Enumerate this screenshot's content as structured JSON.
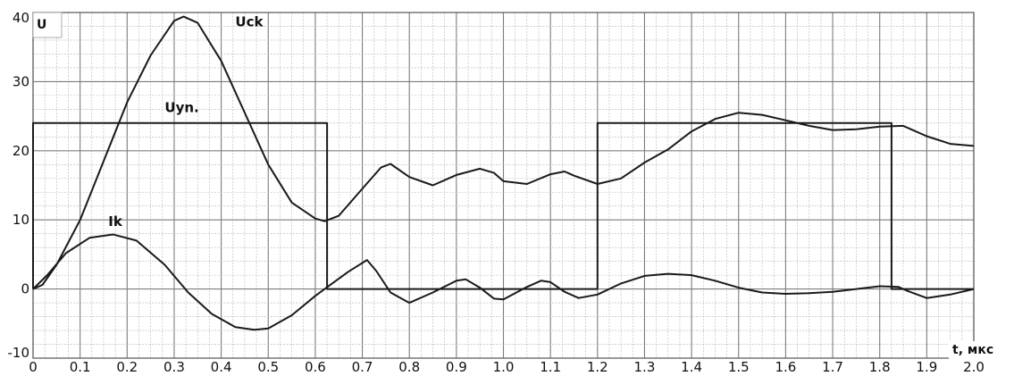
{
  "chart_data": {
    "type": "line",
    "title": "",
    "xlabel": "t, мкс",
    "ylabel": "U",
    "xlim": [
      0,
      2.0
    ],
    "ylim": [
      -10,
      40
    ],
    "grid": true,
    "x_ticks": [
      "0",
      "0.1",
      "0.2",
      "0.3",
      "0.4",
      "0.5",
      "0.6",
      "0.7",
      "0.8",
      "0.9",
      "1.0",
      "1.1",
      "1.2",
      "1.3",
      "1.4",
      "1.5",
      "1.6",
      "1.7",
      "1.8",
      "1.9",
      "2.0"
    ],
    "y_ticks": [
      "-10",
      "0",
      "10",
      "20",
      "30",
      "40"
    ],
    "series": [
      {
        "name": "Uck",
        "label_at": [
          0.43,
          38.0
        ],
        "points": [
          [
            0,
            0
          ],
          [
            0.02,
            0.6
          ],
          [
            0.05,
            3.5
          ],
          [
            0.1,
            10
          ],
          [
            0.15,
            18.5
          ],
          [
            0.2,
            27
          ],
          [
            0.25,
            33.8
          ],
          [
            0.3,
            38.8
          ],
          [
            0.32,
            39.4
          ],
          [
            0.35,
            38.5
          ],
          [
            0.4,
            33
          ],
          [
            0.45,
            25.5
          ],
          [
            0.5,
            18
          ],
          [
            0.55,
            12.5
          ],
          [
            0.6,
            10.2
          ],
          [
            0.62,
            9.8
          ],
          [
            0.65,
            10.6
          ],
          [
            0.7,
            14.5
          ],
          [
            0.74,
            17.6
          ],
          [
            0.76,
            18.1
          ],
          [
            0.8,
            16.2
          ],
          [
            0.85,
            15
          ],
          [
            0.9,
            16.5
          ],
          [
            0.95,
            17.4
          ],
          [
            0.98,
            16.8
          ],
          [
            1.0,
            15.6
          ],
          [
            1.05,
            15.2
          ],
          [
            1.1,
            16.6
          ],
          [
            1.13,
            17
          ],
          [
            1.15,
            16.4
          ],
          [
            1.2,
            15.2
          ],
          [
            1.25,
            16
          ],
          [
            1.3,
            18.3
          ],
          [
            1.35,
            20.2
          ],
          [
            1.4,
            22.8
          ],
          [
            1.45,
            24.6
          ],
          [
            1.5,
            25.5
          ],
          [
            1.55,
            25.2
          ],
          [
            1.6,
            24.4
          ],
          [
            1.65,
            23.6
          ],
          [
            1.7,
            23
          ],
          [
            1.75,
            23.1
          ],
          [
            1.8,
            23.5
          ],
          [
            1.85,
            23.6
          ],
          [
            1.9,
            22.1
          ],
          [
            1.95,
            21
          ],
          [
            2.0,
            20.7
          ]
        ]
      },
      {
        "name": "Uyn.",
        "label_at": [
          0.28,
          25.6
        ],
        "points": [
          [
            0,
            0
          ],
          [
            0,
            24
          ],
          [
            0.625,
            24
          ],
          [
            0.625,
            0
          ],
          [
            1.2,
            0
          ],
          [
            1.2,
            24
          ],
          [
            1.825,
            24
          ],
          [
            1.825,
            0
          ],
          [
            2.0,
            0
          ]
        ]
      },
      {
        "name": "Ik",
        "label_at": [
          0.16,
          9.1
        ],
        "points": [
          [
            0,
            0
          ],
          [
            0.03,
            2
          ],
          [
            0.07,
            5.2
          ],
          [
            0.12,
            7.4
          ],
          [
            0.17,
            7.9
          ],
          [
            0.22,
            7
          ],
          [
            0.28,
            3.5
          ],
          [
            0.33,
            -0.5
          ],
          [
            0.38,
            -3.6
          ],
          [
            0.43,
            -5.5
          ],
          [
            0.47,
            -5.9
          ],
          [
            0.5,
            -5.7
          ],
          [
            0.55,
            -3.8
          ],
          [
            0.6,
            -1
          ],
          [
            0.63,
            0.5
          ],
          [
            0.67,
            2.5
          ],
          [
            0.71,
            4.2
          ],
          [
            0.73,
            2.6
          ],
          [
            0.76,
            -0.5
          ],
          [
            0.8,
            -2
          ],
          [
            0.85,
            -0.5
          ],
          [
            0.9,
            1.2
          ],
          [
            0.92,
            1.4
          ],
          [
            0.95,
            0.2
          ],
          [
            0.98,
            -1.4
          ],
          [
            1.0,
            -1.5
          ],
          [
            1.05,
            0.3
          ],
          [
            1.08,
            1.2
          ],
          [
            1.1,
            1
          ],
          [
            1.13,
            -0.4
          ],
          [
            1.16,
            -1.3
          ],
          [
            1.2,
            -0.8
          ],
          [
            1.25,
            0.8
          ],
          [
            1.3,
            1.9
          ],
          [
            1.35,
            2.2
          ],
          [
            1.4,
            2
          ],
          [
            1.45,
            1.2
          ],
          [
            1.5,
            0.2
          ],
          [
            1.55,
            -0.5
          ],
          [
            1.6,
            -0.7
          ],
          [
            1.65,
            -0.6
          ],
          [
            1.7,
            -0.4
          ],
          [
            1.75,
            0
          ],
          [
            1.8,
            0.4
          ],
          [
            1.84,
            0.3
          ],
          [
            1.86,
            -0.3
          ],
          [
            1.9,
            -1.3
          ],
          [
            1.95,
            -0.8
          ],
          [
            2.0,
            0
          ]
        ]
      }
    ]
  }
}
